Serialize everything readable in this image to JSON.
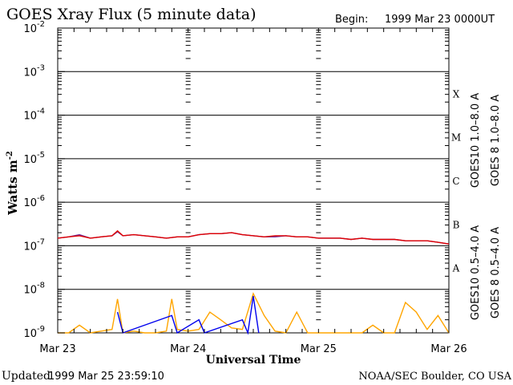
{
  "header": {
    "title": "GOES Xray Flux (5 minute data)",
    "begin_label": "Begin:",
    "begin_value": "1999 Mar 23 0000UT"
  },
  "footer": {
    "updated_label": "Updated",
    "updated_value": "1999 Mar 25 23:59:10",
    "credit": "NOAA/SEC Boulder, CO USA"
  },
  "chart_data": {
    "type": "line",
    "title": "GOES Xray Flux (5 minute data)",
    "xlabel": "Universal Time",
    "ylabel": "Watts m",
    "ylabel_sup": "-2",
    "xlim_hours": [
      0,
      72
    ],
    "x_ticks": [
      {
        "hour": 0,
        "label": "Mar 23"
      },
      {
        "hour": 24,
        "label": "Mar 24"
      },
      {
        "hour": 48,
        "label": "Mar 25"
      },
      {
        "hour": 72,
        "label": "Mar 26"
      }
    ],
    "y_scale": "log",
    "ylim": [
      1e-09,
      0.01
    ],
    "y_ticks": [
      {
        "exp": -2,
        "base": "10",
        "sup": "-2"
      },
      {
        "exp": -3,
        "base": "10",
        "sup": "-3"
      },
      {
        "exp": -4,
        "base": "10",
        "sup": "-4"
      },
      {
        "exp": -5,
        "base": "10",
        "sup": "-5"
      },
      {
        "exp": -6,
        "base": "10",
        "sup": "-6"
      },
      {
        "exp": -7,
        "base": "10",
        "sup": "-7"
      },
      {
        "exp": -8,
        "base": "10",
        "sup": "-8"
      },
      {
        "exp": -9,
        "base": "10",
        "sup": "-9"
      }
    ],
    "flare_classes": [
      {
        "label": "X",
        "center_exp": -3.5
      },
      {
        "label": "M",
        "center_exp": -4.5
      },
      {
        "label": "C",
        "center_exp": -5.5
      },
      {
        "label": "B",
        "center_exp": -6.5
      },
      {
        "label": "A",
        "center_exp": -7.5
      }
    ],
    "legend": [
      {
        "text": "GOES10 1.0–8.0 A",
        "color": "#7030a0"
      },
      {
        "text": "GOES 8 1.0–8.0 A",
        "color": "#e00000"
      },
      {
        "text": "GOES10 0.5–4.0 A",
        "color": "#ffa500"
      },
      {
        "text": "GOES 8 0.5–4.0 A",
        "color": "#0000ee"
      }
    ],
    "series": [
      {
        "name": "GOES10 1.0–8.0 A",
        "color": "#7030a0",
        "x": [
          0,
          2,
          4,
          6,
          8,
          10,
          11,
          12,
          14,
          16,
          18,
          20,
          22,
          24,
          26,
          28,
          30,
          32,
          34,
          36,
          38,
          40,
          42,
          44,
          46,
          48,
          50,
          52,
          54,
          56,
          58,
          60,
          62,
          64,
          66,
          68,
          70,
          72
        ],
        "y": [
          1.5e-07,
          1.6e-07,
          1.8e-07,
          1.5e-07,
          1.6e-07,
          1.7e-07,
          2.1e-07,
          1.7e-07,
          1.8e-07,
          1.7e-07,
          1.6e-07,
          1.5e-07,
          1.6e-07,
          1.6e-07,
          1.8e-07,
          1.9e-07,
          1.9e-07,
          2e-07,
          1.8e-07,
          1.7e-07,
          1.6e-07,
          1.6e-07,
          1.7e-07,
          1.6e-07,
          1.6e-07,
          1.5e-07,
          1.5e-07,
          1.5e-07,
          1.4e-07,
          1.5e-07,
          1.4e-07,
          1.4e-07,
          1.4e-07,
          1.3e-07,
          1.3e-07,
          1.3e-07,
          1.2e-07,
          1.1e-07
        ]
      },
      {
        "name": "GOES 8 1.0–8.0 A",
        "color": "#e00000",
        "x": [
          0,
          2,
          4,
          6,
          8,
          10,
          11,
          12,
          14,
          16,
          18,
          20,
          22,
          24,
          26,
          28,
          30,
          32,
          34,
          36,
          38,
          40,
          42,
          44,
          46,
          48,
          50,
          52,
          54,
          56,
          58,
          60,
          62,
          64,
          66,
          68,
          70,
          72
        ],
        "y": [
          1.5e-07,
          1.6e-07,
          1.7e-07,
          1.5e-07,
          1.6e-07,
          1.7e-07,
          2.2e-07,
          1.7e-07,
          1.8e-07,
          1.7e-07,
          1.6e-07,
          1.5e-07,
          1.6e-07,
          1.6e-07,
          1.8e-07,
          1.9e-07,
          1.9e-07,
          2e-07,
          1.8e-07,
          1.7e-07,
          1.6e-07,
          1.7e-07,
          1.7e-07,
          1.6e-07,
          1.6e-07,
          1.5e-07,
          1.5e-07,
          1.5e-07,
          1.4e-07,
          1.5e-07,
          1.4e-07,
          1.4e-07,
          1.4e-07,
          1.3e-07,
          1.3e-07,
          1.3e-07,
          1.2e-07,
          1.1e-07
        ]
      },
      {
        "name": "GOES10 0.5–4.0 A",
        "color": "#ffa500",
        "x": [
          0,
          2,
          4,
          6,
          8,
          10,
          11,
          12,
          14,
          16,
          18,
          20,
          21,
          22,
          24,
          26,
          28,
          30,
          32,
          34,
          36,
          38,
          40,
          42,
          44,
          46,
          48,
          50,
          52,
          54,
          56,
          58,
          60,
          62,
          64,
          66,
          68,
          70,
          72
        ],
        "y": [
          1e-09,
          1e-09,
          1.5e-09,
          1e-09,
          1.1e-09,
          1.2e-09,
          6e-09,
          1e-09,
          1.1e-09,
          1e-09,
          1e-09,
          1.1e-09,
          6e-09,
          1.2e-09,
          1.1e-09,
          1.2e-09,
          3e-09,
          2e-09,
          1.3e-09,
          1.2e-09,
          8e-09,
          2.5e-09,
          1.1e-09,
          1e-09,
          3e-09,
          1e-09,
          1e-09,
          1e-09,
          1e-09,
          1e-09,
          1e-09,
          1.5e-09,
          1e-09,
          1e-09,
          5e-09,
          3e-09,
          1.2e-09,
          2.5e-09,
          1e-09
        ]
      },
      {
        "name": "GOES 8 0.5–4.0 A",
        "color": "#0000ee",
        "x": [
          11,
          12,
          21,
          22,
          26,
          27,
          34,
          35,
          36,
          37
        ],
        "y": [
          3e-09,
          1e-09,
          2.5e-09,
          1e-09,
          2e-09,
          1e-09,
          2e-09,
          1e-09,
          7e-09,
          1e-09
        ]
      }
    ]
  }
}
